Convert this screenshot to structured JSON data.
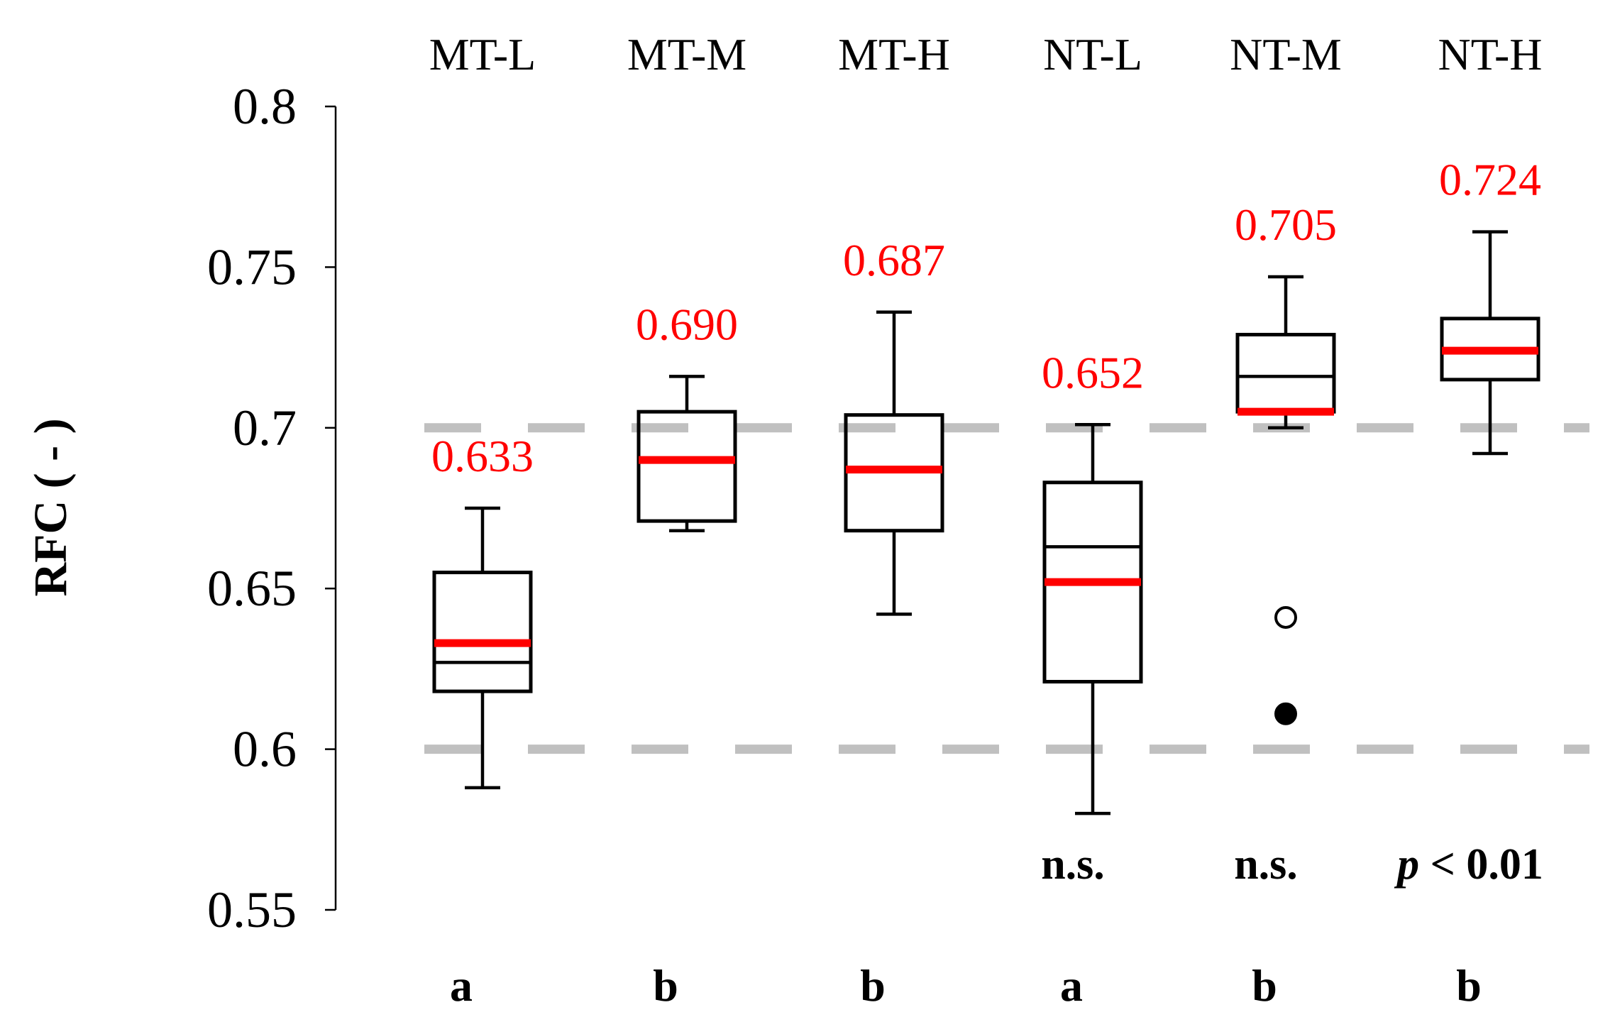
{
  "colors": {
    "box": "#000000",
    "mean_line": "#ff0000",
    "mean_label": "#ff0000",
    "reference_line": "#c0c0c0",
    "background": "#ffffff"
  },
  "chart_data": {
    "type": "box",
    "ylabel": "RFC ( - )",
    "ylim": [
      0.55,
      0.8
    ],
    "yticks": [
      "0.8",
      "0.75",
      "0.7",
      "0.65",
      "0.6",
      "0.55"
    ],
    "ytick_values": [
      0.8,
      0.75,
      0.7,
      0.65,
      0.6,
      0.55
    ],
    "reference_lines": [
      0.7,
      0.6
    ],
    "groups": [
      {
        "name": "MT-L",
        "whisker_low": 0.588,
        "q1": 0.618,
        "median": 0.627,
        "q3": 0.655,
        "whisker_high": 0.675,
        "mean": 0.633,
        "mean_label": "0.633",
        "letter": "a"
      },
      {
        "name": "MT-M",
        "whisker_low": 0.668,
        "q1": 0.671,
        "median": 0.69,
        "q3": 0.705,
        "whisker_high": 0.716,
        "mean": 0.69,
        "mean_label": "0.690",
        "letter": "b"
      },
      {
        "name": "MT-H",
        "whisker_low": 0.642,
        "q1": 0.668,
        "median": 0.687,
        "q3": 0.704,
        "whisker_high": 0.736,
        "mean": 0.687,
        "mean_label": "0.687",
        "letter": "b"
      },
      {
        "name": "NT-L",
        "whisker_low": 0.58,
        "q1": 0.621,
        "median": 0.663,
        "q3": 0.683,
        "whisker_high": 0.701,
        "mean": 0.652,
        "mean_label": "0.652",
        "letter": "a"
      },
      {
        "name": "NT-M",
        "whisker_low": 0.7,
        "q1": 0.705,
        "median": 0.716,
        "q3": 0.729,
        "whisker_high": 0.747,
        "mean": 0.705,
        "mean_label": "0.705",
        "letter": "b",
        "outliers": [
          {
            "value": 0.641,
            "filled": false
          },
          {
            "value": 0.611,
            "filled": true
          }
        ]
      },
      {
        "name": "NT-H",
        "whisker_low": 0.692,
        "q1": 0.715,
        "median": 0.724,
        "q3": 0.734,
        "whisker_high": 0.761,
        "mean": 0.724,
        "mean_label": "0.724",
        "letter": "b"
      }
    ],
    "significance": [
      {
        "text": "n.s.",
        "under": "NT-L"
      },
      {
        "text": "n.s.",
        "under": "NT-M"
      },
      {
        "text_italic": "p",
        "text": " < 0.01",
        "under": "NT-H"
      }
    ]
  }
}
